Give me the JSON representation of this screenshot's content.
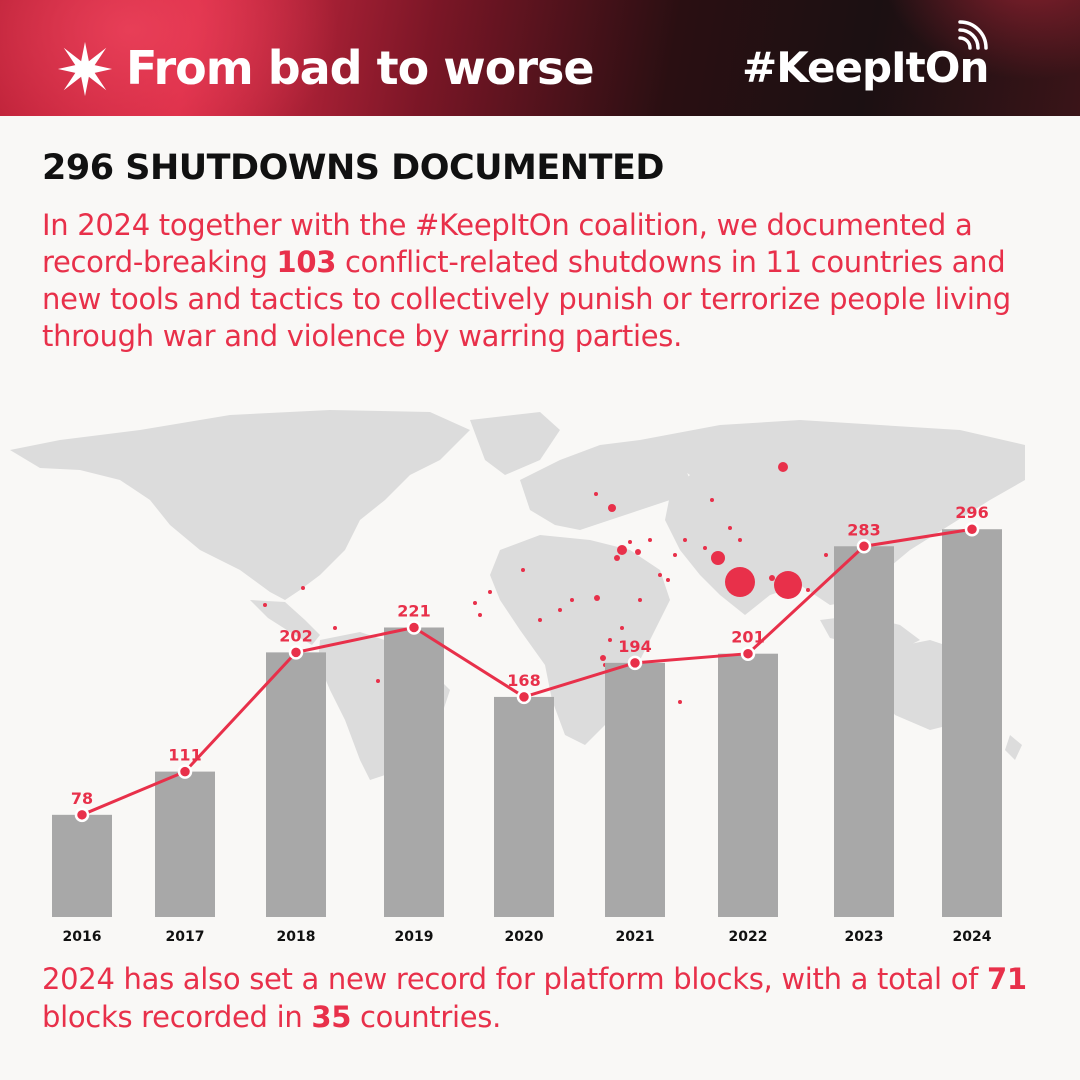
{
  "header": {
    "title": "From bad to worse",
    "tag": "#KeepItOn",
    "title_icon": "burst-icon",
    "tag_icon": "signal-icon"
  },
  "subtitle": "296 SHUTDOWNS DOCUMENTED",
  "intro": {
    "before": "In 2024 together with the #KeepItOn coalition, we documented a record-breaking ",
    "highlight": "103",
    "after": " conflict-related shutdowns in 11 countries and new tools and tactics to collectively punish or terrorize people living through war and violence by warring parties."
  },
  "footer": {
    "part1": "2024 has also set a new record for platform blocks, with a total of ",
    "num1": "71",
    "part2": " blocks recorded in ",
    "num2": "35",
    "part3": " countries."
  },
  "colors": {
    "accent": "#e8304a",
    "bar": "#a8a8a8",
    "map": "#dcdcdc",
    "text": "#111111"
  },
  "chart_data": {
    "type": "bar",
    "categories": [
      "2016",
      "2017",
      "2018",
      "2019",
      "2020",
      "2021",
      "2022",
      "2023",
      "2024"
    ],
    "values": [
      78,
      111,
      202,
      221,
      168,
      194,
      201,
      283,
      296
    ],
    "line_overlay": true,
    "ylim": [
      0,
      320
    ],
    "grid": false,
    "title": "",
    "xlabel": "",
    "ylabel": ""
  }
}
